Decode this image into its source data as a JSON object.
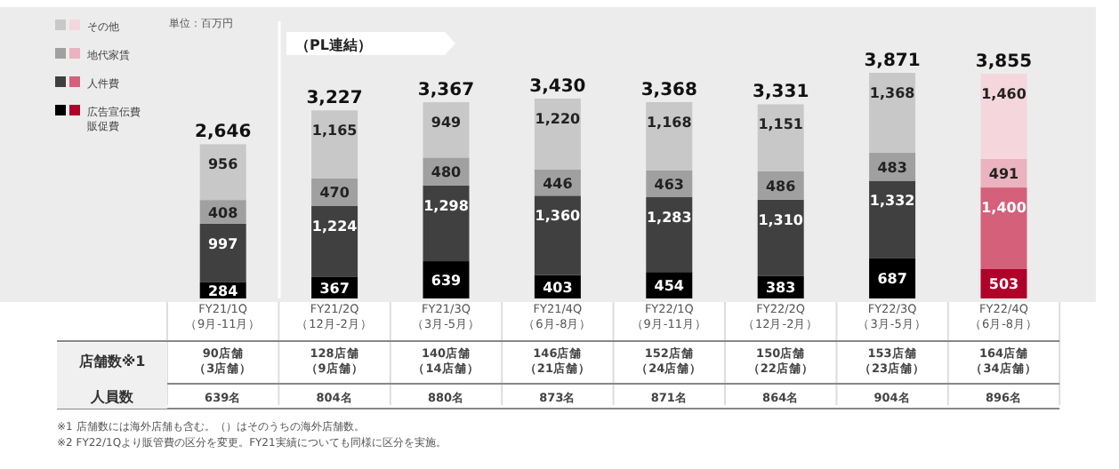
{
  "chart_data": {
    "type": "bar",
    "stacked": true,
    "title": "（PL連結）",
    "legend": "left",
    "categories": [
      "FY21/1Q（9月-11月）",
      "FY21/2Q（12月-2月）",
      "FY21/3Q（3月-5月）",
      "FY21/4Q（6月-8月）",
      "FY22/1Q（9月-11月）",
      "FY22/2Q（12月-2月）",
      "FY22/3Q（3月-5月）",
      "FY22/4Q（6月-8月）"
    ],
    "series": [
      {
        "name": "広告宣伝費販促費",
        "color": "#000000",
        "colors": [
          "#000000",
          "#000000",
          "#000000",
          "#000000",
          "#000000",
          "#000000",
          "#000000",
          "#b0002a"
        ],
        "values": [
          284,
          367,
          639,
          403,
          454,
          383,
          687,
          503
        ],
        "value_labels": [
          "284",
          "367",
          "639",
          "403",
          "454",
          "383",
          "687",
          "503"
        ]
      },
      {
        "name": "人件費",
        "color": "#404040",
        "colors": [
          "#404040",
          "#404040",
          "#404040",
          "#404040",
          "#404040",
          "#404040",
          "#404040",
          "#d4607a"
        ],
        "values": [
          997,
          1224,
          1298,
          1360,
          1283,
          1310,
          1332,
          1400
        ],
        "value_labels": [
          "997",
          "1,224",
          "1,298",
          "1,360",
          "1,283",
          "1,310",
          "1,332",
          "1,400"
        ]
      },
      {
        "name": "地代家賃",
        "color": "#a0a0a0",
        "colors": [
          "#a0a0a0",
          "#a0a0a0",
          "#a0a0a0",
          "#a0a0a0",
          "#a0a0a0",
          "#a0a0a0",
          "#a0a0a0",
          "#ebb3c0"
        ],
        "values": [
          408,
          470,
          480,
          446,
          463,
          486,
          483,
          491
        ],
        "value_labels": [
          "408",
          "470",
          "480",
          "446",
          "463",
          "486",
          "483",
          "491"
        ]
      },
      {
        "name": "その他",
        "color": "#c8c8c8",
        "colors": [
          "#c8c8c8",
          "#c8c8c8",
          "#c8c8c8",
          "#c8c8c8",
          "#c8c8c8",
          "#c8c8c8",
          "#c8c8c8",
          "#f5d6dd"
        ],
        "values": [
          956,
          1165,
          949,
          1220,
          1168,
          1151,
          1368,
          1460
        ],
        "value_labels": [
          "956",
          "1,165",
          "949",
          "1,220",
          "1,168",
          "1,151",
          "1,368",
          "1,460"
        ]
      }
    ],
    "totals": [
      "2,646",
      "3,227",
      "3,367",
      "3,430",
      "3,368",
      "3,331",
      "3,871",
      "3,855"
    ],
    "annotations": [
      "単位：百万円",
      "店舗数※1",
      "90店舗（3店舗）",
      "128店舗（9店舗）",
      "140店舗（14店舗）",
      "146店舗（21店舗）",
      "152店舗（24店舗）",
      "150店舗（22店舗）",
      "153店舗（23店舗）",
      "164店舗（34店舗）",
      "人員数",
      "639名",
      "804名",
      "880名",
      "873名",
      "871名",
      "864名",
      "904名",
      "896名",
      "※1 店舗数には海外店舗も含む。（）はそのうちの海外店舗数。",
      "※2 FY22/1Qより販管費の区分を変更。FY21実績についても同様に区分を実施。"
    ]
  }
}
